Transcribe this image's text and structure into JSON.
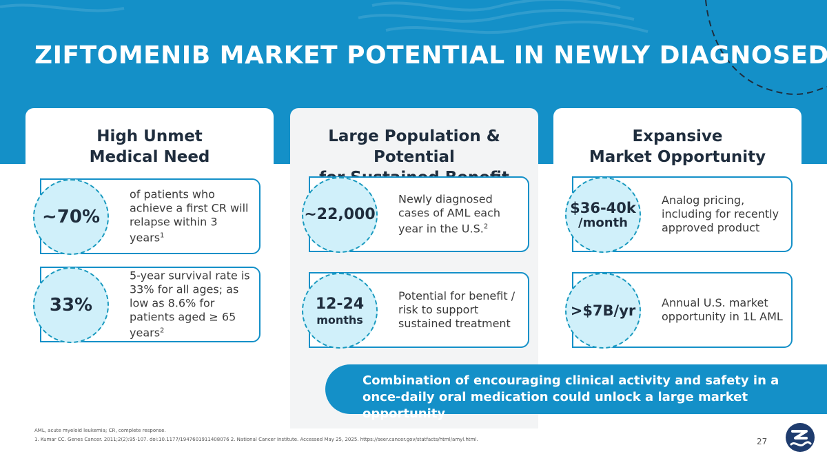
{
  "title": "ZIFTOMENIB MARKET POTENTIAL IN NEWLY DIAGNOSED AML",
  "columns": [
    {
      "heading": "High Unmet\nMedical Need",
      "cards": [
        {
          "stat": "~70%",
          "text": "of patients who achieve a first CR will relapse within 3 years",
          "sup": "1"
        },
        {
          "stat": "33%",
          "text": "5-year survival rate is 33% for all ages; as low as 8.6% for patients aged ≥ 65 years",
          "sup": "2"
        }
      ]
    },
    {
      "heading": "Large Population & Potential\nfor Sustained Benefit",
      "cards": [
        {
          "stat": "~22,000",
          "text": "Newly diagnosed cases of AML each year in the U.S.",
          "sup": "2"
        },
        {
          "stat_line1": "12-24",
          "stat_line2": "months",
          "text": "Potential for benefit / risk to support sustained treatment"
        }
      ]
    },
    {
      "heading": "Expansive\nMarket Opportunity",
      "cards": [
        {
          "stat_line1": "$36-40k",
          "stat_line2": "/month",
          "text": "Analog pricing, including for recently approved product"
        },
        {
          "stat": ">$7B/yr",
          "text": "Annual U.S. market opportunity in 1L AML"
        }
      ]
    }
  ],
  "callout": "Combination of encouraging clinical activity and safety in a once-daily oral medication could unlock a large market opportunity",
  "footnotes": {
    "abbreviations": "AML, acute myeloid leukemia; CR, complete response.",
    "references": "1. Kumar CC. Genes Cancer. 2011;2(2):95-107. doi:10.1177/1947601911408076 2. National Cancer Institute. Accessed May 25, 2025. https://seer.cancer.gov/statfacts/html/amyl.html."
  },
  "page_number": "27",
  "logo_icon": "company-logo-icon",
  "colors": {
    "brand_blue": "#1490c8",
    "bubble_fill": "#d0f0fa",
    "dark_text": "#1f2d3d"
  }
}
